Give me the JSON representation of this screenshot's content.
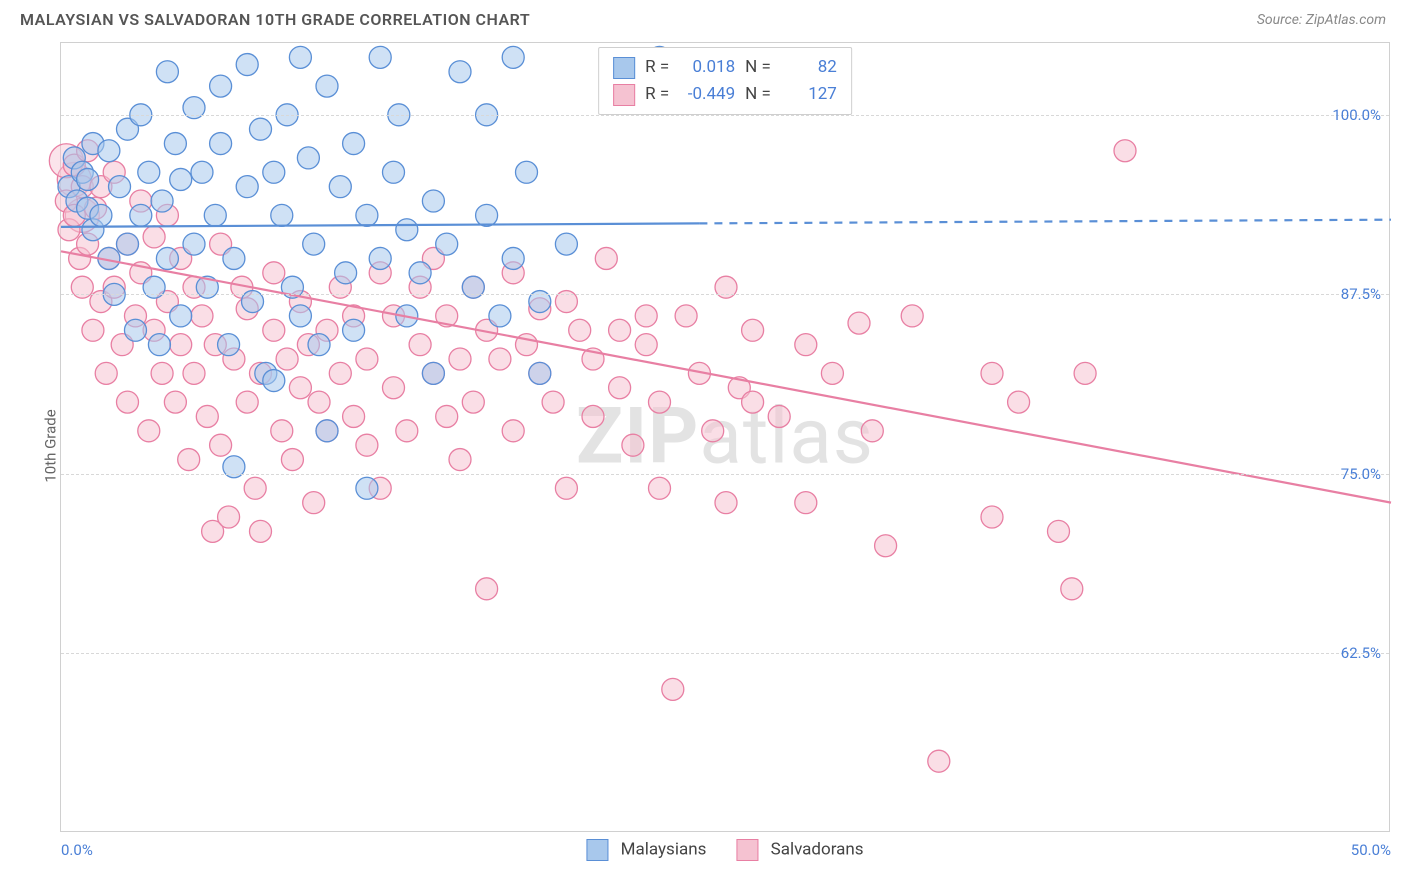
{
  "header": {
    "title": "MALAYSIAN VS SALVADORAN 10TH GRADE CORRELATION CHART",
    "source": "Source: ZipAtlas.com"
  },
  "chart": {
    "type": "scatter",
    "ylabel": "10th Grade",
    "xlim": [
      0,
      50
    ],
    "ylim": [
      50,
      105
    ],
    "yticks": [
      62.5,
      75.0,
      87.5,
      100.0
    ],
    "ytick_labels": [
      "62.5%",
      "75.0%",
      "87.5%",
      "100.0%"
    ],
    "xticks": [
      0,
      50
    ],
    "xtick_labels": [
      "0.0%",
      "50.0%"
    ],
    "grid_color": "#d8d8d8",
    "border_color": "#d0d0d0",
    "background_color": "#ffffff",
    "watermark": "ZIPatlas",
    "marker_radius": 11,
    "marker_radius_large": 17,
    "series": [
      {
        "name": "Malaysians",
        "color_fill": "#a8c8ec",
        "color_stroke": "#5a8fd6",
        "fill_opacity": 0.55,
        "regression": {
          "y_at_x0": 92.2,
          "y_at_x50": 92.7,
          "solid_until_x": 24,
          "stroke_width": 2.2
        },
        "R_label": "R =",
        "R": "0.018",
        "N_label": "N =",
        "N": "82",
        "points": [
          [
            0.3,
            95
          ],
          [
            0.5,
            97
          ],
          [
            0.6,
            94
          ],
          [
            0.8,
            96
          ],
          [
            1.0,
            93.5
          ],
          [
            1.0,
            95.5
          ],
          [
            1.2,
            92
          ],
          [
            1.2,
            98
          ],
          [
            1.5,
            93
          ],
          [
            1.8,
            90
          ],
          [
            1.8,
            97.5
          ],
          [
            2.0,
            87.5
          ],
          [
            2.2,
            95
          ],
          [
            2.5,
            91
          ],
          [
            2.5,
            99
          ],
          [
            2.8,
            85
          ],
          [
            3.0,
            93
          ],
          [
            3.0,
            100
          ],
          [
            3.3,
            96
          ],
          [
            3.5,
            88
          ],
          [
            3.7,
            84
          ],
          [
            3.8,
            94
          ],
          [
            4.0,
            90
          ],
          [
            4.0,
            103
          ],
          [
            4.3,
            98
          ],
          [
            4.5,
            86
          ],
          [
            4.5,
            95.5
          ],
          [
            5.0,
            100.5
          ],
          [
            5.0,
            91
          ],
          [
            5.3,
            96
          ],
          [
            5.5,
            88
          ],
          [
            5.8,
            93
          ],
          [
            6.0,
            98
          ],
          [
            6.0,
            102
          ],
          [
            6.3,
            84
          ],
          [
            6.5,
            90
          ],
          [
            6.5,
            75.5
          ],
          [
            7.0,
            103.5
          ],
          [
            7.0,
            95
          ],
          [
            7.2,
            87
          ],
          [
            7.5,
            99
          ],
          [
            7.7,
            82
          ],
          [
            8.0,
            81.5
          ],
          [
            8.0,
            96
          ],
          [
            8.3,
            93
          ],
          [
            8.5,
            100
          ],
          [
            8.7,
            88
          ],
          [
            9.0,
            86
          ],
          [
            9.0,
            104
          ],
          [
            9.3,
            97
          ],
          [
            9.5,
            91
          ],
          [
            9.7,
            84
          ],
          [
            10.0,
            102
          ],
          [
            10.0,
            78
          ],
          [
            10.5,
            95
          ],
          [
            10.7,
            89
          ],
          [
            11.0,
            98
          ],
          [
            11.0,
            85
          ],
          [
            11.5,
            93
          ],
          [
            11.5,
            74
          ],
          [
            12.0,
            104
          ],
          [
            12.0,
            90
          ],
          [
            12.5,
            96
          ],
          [
            12.7,
            100
          ],
          [
            13.0,
            86
          ],
          [
            13.0,
            92
          ],
          [
            13.5,
            89
          ],
          [
            14.0,
            94
          ],
          [
            14.0,
            82
          ],
          [
            14.5,
            91
          ],
          [
            15.0,
            103
          ],
          [
            15.5,
            88
          ],
          [
            16.0,
            100
          ],
          [
            16.0,
            93
          ],
          [
            16.5,
            86
          ],
          [
            17.0,
            104
          ],
          [
            17.0,
            90
          ],
          [
            17.5,
            96
          ],
          [
            18.0,
            82
          ],
          [
            18.0,
            87
          ],
          [
            19.0,
            91
          ],
          [
            22.5,
            104
          ],
          [
            23.5,
            103
          ]
        ]
      },
      {
        "name": "Salvadorans",
        "color_fill": "#f5c2d1",
        "color_stroke": "#e87fa3",
        "fill_opacity": 0.55,
        "regression": {
          "y_at_x0": 90.5,
          "y_at_x50": 73.0,
          "solid_until_x": 50,
          "stroke_width": 2.2
        },
        "R_label": "R =",
        "R": "-0.449",
        "N_label": "N =",
        "N": "127",
        "points": [
          [
            0.2,
            94
          ],
          [
            0.3,
            92
          ],
          [
            0.5,
            96.5
          ],
          [
            0.5,
            93
          ],
          [
            0.7,
            90
          ],
          [
            0.8,
            95
          ],
          [
            0.8,
            88
          ],
          [
            1.0,
            97.5
          ],
          [
            1.0,
            91
          ],
          [
            1.2,
            85
          ],
          [
            1.3,
            93.5
          ],
          [
            1.5,
            87
          ],
          [
            1.5,
            95
          ],
          [
            1.7,
            82
          ],
          [
            1.8,
            90
          ],
          [
            2.0,
            88
          ],
          [
            2.0,
            96
          ],
          [
            2.3,
            84
          ],
          [
            2.5,
            91
          ],
          [
            2.5,
            80
          ],
          [
            2.8,
            86
          ],
          [
            3.0,
            89
          ],
          [
            3.0,
            94
          ],
          [
            3.3,
            78
          ],
          [
            3.5,
            85
          ],
          [
            3.5,
            91.5
          ],
          [
            3.8,
            82
          ],
          [
            4.0,
            87
          ],
          [
            4.0,
            93
          ],
          [
            4.3,
            80
          ],
          [
            4.5,
            84
          ],
          [
            4.5,
            90
          ],
          [
            4.8,
            76
          ],
          [
            5.0,
            88
          ],
          [
            5.0,
            82
          ],
          [
            5.3,
            86
          ],
          [
            5.5,
            79
          ],
          [
            5.7,
            71
          ],
          [
            5.8,
            84
          ],
          [
            6.0,
            91
          ],
          [
            6.0,
            77
          ],
          [
            6.3,
            72
          ],
          [
            6.5,
            83
          ],
          [
            6.8,
            88
          ],
          [
            7.0,
            80
          ],
          [
            7.0,
            86.5
          ],
          [
            7.3,
            74
          ],
          [
            7.5,
            71
          ],
          [
            7.5,
            82
          ],
          [
            8.0,
            85
          ],
          [
            8.0,
            89
          ],
          [
            8.3,
            78
          ],
          [
            8.5,
            83
          ],
          [
            8.7,
            76
          ],
          [
            9.0,
            87
          ],
          [
            9.0,
            81
          ],
          [
            9.3,
            84
          ],
          [
            9.5,
            73
          ],
          [
            9.7,
            80
          ],
          [
            10.0,
            78
          ],
          [
            10.0,
            85
          ],
          [
            10.5,
            88
          ],
          [
            10.5,
            82
          ],
          [
            11.0,
            79
          ],
          [
            11.0,
            86
          ],
          [
            11.5,
            83
          ],
          [
            11.5,
            77
          ],
          [
            12.0,
            89
          ],
          [
            12.0,
            74
          ],
          [
            12.5,
            81
          ],
          [
            12.5,
            86
          ],
          [
            13.0,
            78
          ],
          [
            13.5,
            84
          ],
          [
            13.5,
            88
          ],
          [
            14.0,
            90
          ],
          [
            14.0,
            82
          ],
          [
            14.5,
            79
          ],
          [
            14.5,
            86
          ],
          [
            15.0,
            83
          ],
          [
            15.0,
            76
          ],
          [
            15.5,
            88
          ],
          [
            15.5,
            80
          ],
          [
            16.0,
            85
          ],
          [
            16.0,
            67
          ],
          [
            16.5,
            83
          ],
          [
            17.0,
            89
          ],
          [
            17.0,
            78
          ],
          [
            17.5,
            84
          ],
          [
            18.0,
            86.5
          ],
          [
            18.0,
            82
          ],
          [
            18.5,
            80
          ],
          [
            19.0,
            87
          ],
          [
            19.0,
            74
          ],
          [
            19.5,
            85
          ],
          [
            20.0,
            83
          ],
          [
            20.0,
            79
          ],
          [
            20.5,
            90
          ],
          [
            21.0,
            85
          ],
          [
            21.0,
            81
          ],
          [
            21.5,
            77
          ],
          [
            22.0,
            86
          ],
          [
            22.0,
            84
          ],
          [
            22.5,
            74
          ],
          [
            22.5,
            80
          ],
          [
            23.0,
            60
          ],
          [
            23.5,
            86
          ],
          [
            24.0,
            82
          ],
          [
            24.5,
            78
          ],
          [
            25.0,
            88
          ],
          [
            25.0,
            73
          ],
          [
            25.5,
            81
          ],
          [
            26.0,
            85
          ],
          [
            26.0,
            80
          ],
          [
            27.0,
            79
          ],
          [
            28.0,
            84
          ],
          [
            28.0,
            73
          ],
          [
            29.0,
            82
          ],
          [
            30.0,
            85.5
          ],
          [
            30.5,
            78
          ],
          [
            31.0,
            70
          ],
          [
            32.0,
            86
          ],
          [
            33.0,
            55
          ],
          [
            35.0,
            72
          ],
          [
            35.0,
            82
          ],
          [
            36.0,
            80
          ],
          [
            37.5,
            71
          ],
          [
            38.0,
            67
          ],
          [
            38.5,
            82
          ],
          [
            40.0,
            97.5
          ]
        ],
        "large_points": [
          [
            0.5,
            95.5
          ],
          [
            0.8,
            93
          ],
          [
            0.2,
            96.8
          ]
        ]
      }
    ],
    "bottom_legend": [
      {
        "label": "Malaysians",
        "fill": "#a8c8ec",
        "stroke": "#5a8fd6"
      },
      {
        "label": "Salvadorans",
        "fill": "#f5c2d1",
        "stroke": "#e87fa3"
      }
    ]
  }
}
